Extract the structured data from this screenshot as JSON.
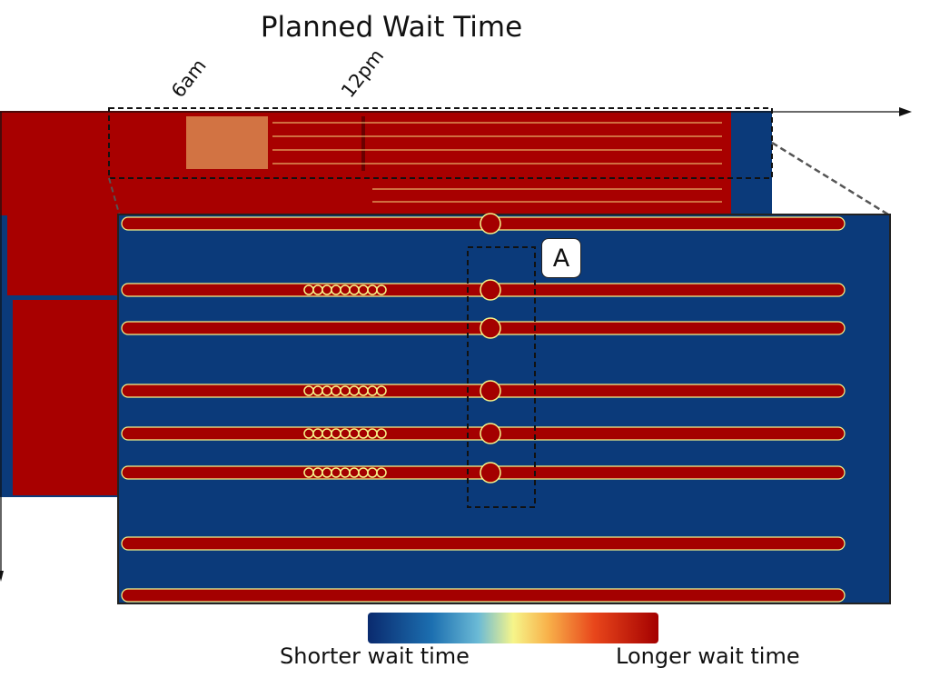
{
  "chart_data": {
    "type": "heatmap",
    "title": "Planned Wait Time",
    "x_ticks": [
      "6am",
      "12pm"
    ],
    "annotation": "A",
    "colorbar": {
      "low_label": "Shorter wait time",
      "high_label": "Longer wait time",
      "low_color": "#0a2a6e",
      "mid_color": "#f6f58a",
      "high_color": "#a40000"
    },
    "zoom_rows": [
      {
        "pattern": "full"
      },
      {
        "pattern": "mixed"
      },
      {
        "pattern": "solid"
      },
      {
        "pattern": "mixed"
      },
      {
        "pattern": "mixed"
      },
      {
        "pattern": "mixed"
      },
      {
        "pattern": "solid"
      },
      {
        "pattern": "solid"
      }
    ]
  }
}
